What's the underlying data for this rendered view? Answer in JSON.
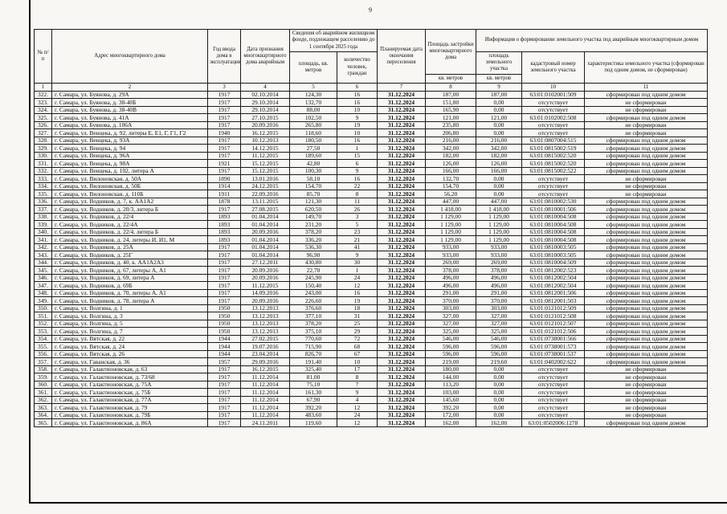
{
  "page": {
    "number": "9"
  },
  "table": {
    "header": {
      "num": "№ п/п",
      "address": "Адрес многоквартирного дома",
      "year": "Год ввода дома в эксплуатацию",
      "date_recognized": "Дата признания многоквартирного дома аварийным",
      "fund_group": "Сведения об аварийном жилищном фонде, подлежащем расселению до 1 сентября 2025 года",
      "fund_area": "площадь, кв. метров",
      "fund_people": "количество человек, граждан",
      "resettle_date": "Планируемая дата окончания переселения",
      "footprint": "Площадь застройки многоквартирного дома",
      "footprint_unit": "кв. метров",
      "land_group": "Информация о формировании земельного участка под аварийным многоквартирным домом",
      "land_area": "площадь земельного участка",
      "land_area_unit": "кв. метров",
      "cadastral": "кадастровый номер земельного участка",
      "characteristic": "характеристика земельного участка (сформирован под одним домом, не сформирован)",
      "numbers": [
        "1",
        "2",
        "3",
        "4",
        "5",
        "6",
        "7",
        "8",
        "9",
        "10",
        "11"
      ]
    },
    "rows": [
      [
        "322.",
        "г. Самара, ул. Буянова, д. 29А",
        "1917",
        "02.10.2014",
        "124,30",
        "16",
        "31.12.2024",
        "187,00",
        "187,00",
        "63:01:0102001:509",
        "сформирован под одним домом"
      ],
      [
        "323.",
        "г. Самара, ул. Буянова, д. 38-40Б",
        "1917",
        "29.10.2014",
        "132,70",
        "16",
        "31.12.2024",
        "151,80",
        "0,00",
        "отсутствует",
        "не сформирован"
      ],
      [
        "324.",
        "г. Самара, ул. Буянова, д. 38-40В",
        "1917",
        "29.10.2014",
        "88,00",
        "10",
        "31.12.2024",
        "165,90",
        "0,00",
        "отсутствует",
        "не сформирован"
      ],
      [
        "325.",
        "г. Самара, ул. Буянова, д. 41А",
        "1917",
        "27.10.2015",
        "102,50",
        "9",
        "31.12.2024",
        "121,00",
        "121,00",
        "63:01:0102002:508",
        "сформирован под одним домом"
      ],
      [
        "326.",
        "г. Самара, ул. Буянова, д. 106А",
        "1917",
        "20.09.2016",
        "265,80",
        "19",
        "31.12.2024",
        "235,80",
        "0,00",
        "отсутствует",
        "не сформирован"
      ],
      [
        "327.",
        "г. Самара, ул. Венцека, д. 92, литеры Е, Е1, Г, Г1, Г2",
        "1940",
        "16.12.2015",
        "118,60",
        "10",
        "31.12.2024",
        "206,80",
        "0,00",
        "отсутствует",
        "не сформирован"
      ],
      [
        "328.",
        "г. Самара, ул. Венцека, д. 93А",
        "1917",
        "10.12.2013",
        "180,50",
        "16",
        "31.12.2024",
        "216,00",
        "216,00",
        "63:01:0807004:515",
        "сформирован под одним домом"
      ],
      [
        "329.",
        "г. Самара, ул. Венцека, д. 94",
        "1917",
        "14.12.2015",
        "27,50",
        "1",
        "31.12.2024",
        "342,00",
        "342,00",
        "63:01:0815002:519",
        "сформирован под одним домом"
      ],
      [
        "330.",
        "г. Самара, ул. Венцека, д. 96А",
        "1917",
        "11.12.2015",
        "189,60",
        "15",
        "31.12.2024",
        "182,00",
        "182,00",
        "63:01:0815002:520",
        "сформирован под одним домом"
      ],
      [
        "331.",
        "г. Самара, ул. Венцека, д. 98А",
        "1921",
        "15.12.2015",
        "42,80",
        "6",
        "31.12.2024",
        "126,00",
        "126,00",
        "63:01:0815002:520",
        "сформирован под одним домом"
      ],
      [
        "332.",
        "г. Самара, ул. Венцека, д. 102, литера А",
        "1917",
        "15.12.2015",
        "100,30",
        "9",
        "31.12.2024",
        "166,00",
        "166,00",
        "63:01:0815002:522",
        "сформирован под одним домом"
      ],
      [
        "333.",
        "г. Самара, ул. Вилоновская, д. 50А",
        "1890",
        "13.01.2016",
        "58,10",
        "16",
        "31.12.2024",
        "132,70",
        "0,00",
        "отсутствует",
        "не сформирован"
      ],
      [
        "334.",
        "г. Самара, ул. Вилоновская, д. 50Б",
        "1914",
        "24.12.2015",
        "154,70",
        "22",
        "31.12.2024",
        "154,70",
        "0,00",
        "отсутствует",
        "не сформирован"
      ],
      [
        "335.",
        "г. Самара, ул. Вилоновская, д. 110Б",
        "1911",
        "22.09.2016",
        "85,70",
        "8",
        "31.12.2024",
        "56,20",
        "0,00",
        "отсутствует",
        "не сформирован"
      ],
      [
        "336.",
        "г. Самара, ул. Водников, д. 7, к. АА1А2",
        "1878",
        "13.11.2015",
        "121,30",
        "11",
        "31.12.2024",
        "447,00",
        "447,00",
        "63:01:0810002:530",
        "сформирован под одним домом"
      ],
      [
        "337.",
        "г. Самара, ул. Водников, д. 20/3, литера Б",
        "1917",
        "27.08.2015",
        "620,50",
        "26",
        "31.12.2024",
        "1 418,00",
        "1 418,00",
        "63:01:0810001:506",
        "сформирован под одним домом"
      ],
      [
        "338.",
        "г. Самара, ул. Водников, д. 22/4",
        "1893",
        "01.04.2014",
        "149,70",
        "3",
        "31.12.2024",
        "1 129,00",
        "1 129,00",
        "63:01:0810004:508",
        "сформирован под одним домом"
      ],
      [
        "339.",
        "г. Самара, ул. Водников, д. 22/4А",
        "1893",
        "01.04.2014",
        "231,20",
        "5",
        "31.12.2024",
        "1 129,00",
        "1 129,00",
        "63:01:0810004:508",
        "сформирован под одним домом"
      ],
      [
        "340.",
        "г. Самара, ул. Водников, д. 22/4, литера Б",
        "1893",
        "20.09.2016",
        "378,20",
        "23",
        "31.12.2024",
        "1 129,00",
        "1 129,00",
        "63:01:0810004:508",
        "сформирован под одним домом"
      ],
      [
        "341.",
        "г. Самара, ул. Водников, д. 24, литеры И, И1, М",
        "1893",
        "01.04.2014",
        "336,20",
        "21",
        "31.12.2024",
        "1 129,00",
        "1 129,00",
        "63:01:0810004:508",
        "сформирован под одним домом"
      ],
      [
        "342.",
        "г. Самара, ул. Водников, д. 25А",
        "1917",
        "01.04.2014",
        "536,30",
        "41",
        "31.12.2024",
        "933,00",
        "933,00",
        "63:01:0810003:505",
        "сформирован под одним домом"
      ],
      [
        "343.",
        "г. Самара, ул. Водников, д. 25Г",
        "1917",
        "01.04.2014",
        "96,90",
        "9",
        "31.12.2024",
        "933,00",
        "933,00",
        "63:01:0810003:505",
        "сформирован под одним домом"
      ],
      [
        "344.",
        "г. Самара, ул. Водников, д. 40, к. АА1А2А3",
        "1917",
        "27.12.2011",
        "430,80",
        "30",
        "31.12.2024",
        "269,00",
        "269,00",
        "63:01:0810004:509",
        "сформирован под одним домом"
      ],
      [
        "345.",
        "г. Самара, ул. Водников, д. 67, литеры А, А1",
        "1917",
        "20.09.2016",
        "22,70",
        "1",
        "31.12.2024",
        "378,00",
        "378,00",
        "63:01:0812002:523",
        "сформирован под одним домом"
      ],
      [
        "346.",
        "г. Самара, ул. Водников, д. 69, литера А",
        "1917",
        "20.09.2016",
        "245,90",
        "24",
        "31.12.2024",
        "496,00",
        "496,00",
        "63:01:0812002:504",
        "сформирован под одним домом"
      ],
      [
        "347.",
        "г. Самара, ул. Водников, д. 69Б",
        "1917",
        "11.12.2015",
        "150,40",
        "12",
        "31.12.2024",
        "496,00",
        "496,00",
        "63:01:0812002:504",
        "сформирован под одним домом"
      ],
      [
        "348.",
        "г. Самара, ул. Водников, д. 70, литеры А, А1",
        "1917",
        "14.09.2016",
        "243,00",
        "16",
        "31.12.2024",
        "291,00",
        "291,00",
        "63:01:0812001:506",
        "сформирован под одним домом"
      ],
      [
        "349.",
        "г. Самара, ул. Водников, д. 78, литера А",
        "1917",
        "20.09.2016",
        "226,60",
        "19",
        "31.12.2024",
        "370,00",
        "370,00",
        "63:01:0812001:503",
        "сформирован под одним домом"
      ],
      [
        "350.",
        "г. Самара, ул. Волгина, д. 1",
        "1950",
        "13.12.2013",
        "376,60",
        "18",
        "31.12.2024",
        "303,00",
        "303,00",
        "63:01:0121012:509",
        "сформирован под одним домом"
      ],
      [
        "351.",
        "г. Самара, ул. Волгина, д. 3",
        "1950",
        "13.12.2013",
        "377,10",
        "31",
        "31.12.2024",
        "327,00",
        "327,00",
        "63:01:0121012:508",
        "сформирован под одним домом"
      ],
      [
        "352.",
        "г. Самара, ул. Волгина, д. 5",
        "1950",
        "13.12.2013",
        "378,20",
        "25",
        "31.12.2024",
        "327,00",
        "327,00",
        "63:01:0121012:507",
        "сформирован под одним домом"
      ],
      [
        "353.",
        "г. Самара, ул. Волгина, д. 7",
        "1950",
        "13.12.2013",
        "375,10",
        "29",
        "31.12.2024",
        "325,00",
        "325,00",
        "63:01:0121012:506",
        "сформирован под одним домом"
      ],
      [
        "354.",
        "г. Самара, ул. Вятская, д. 22",
        "1944",
        "27.02.2015",
        "770,60",
        "72",
        "31.12.2024",
        "546,00",
        "546,00",
        "63:01:0738001:566",
        "сформирован под одним домом"
      ],
      [
        "355.",
        "г. Самара, ул. Вятская, д. 24",
        "1944",
        "19.07.2016",
        "715,90",
        "68",
        "31.12.2024",
        "596,00",
        "596,00",
        "63:01:0738001:573",
        "сформирован под одним домом"
      ],
      [
        "356.",
        "г. Самара, ул. Вятская, д. 26",
        "1944",
        "23.04.2014",
        "826,70",
        "67",
        "31.12.2024",
        "596,00",
        "596,00",
        "63:01:0738001:537",
        "сформирован под одним домом"
      ],
      [
        "357.",
        "г. Самара, ул. Гаванская, д. 36",
        "1957",
        "29.09.2016",
        "191,40",
        "10",
        "31.12.2024",
        "219,00",
        "219,60",
        "63:01:0402002:622",
        "сформирован под одним домом"
      ],
      [
        "358.",
        "г. Самара, ул. Галактионовская, д. 63",
        "1917",
        "16.12.2015",
        "325,40",
        "17",
        "31.12.2024",
        "180,00",
        "0,00",
        "отсутствует",
        "не сформирован"
      ],
      [
        "359.",
        "г. Самара, ул. Галактионовская, д. 73/68",
        "1917",
        "11.12.2014",
        "81,00",
        "8",
        "31.12.2024",
        "144,00",
        "0,00",
        "отсутствует",
        "не сформирован"
      ],
      [
        "360.",
        "г. Самара, ул. Галактионовская, д. 75А",
        "1917",
        "11.12.2014",
        "75,10",
        "7",
        "31.12.2024",
        "113,20",
        "0,00",
        "отсутствует",
        "не сформирован"
      ],
      [
        "361.",
        "г. Самара, ул. Галактионовская, д. 75Б",
        "1917",
        "11.12.2014",
        "161,30",
        "9",
        "31.12.2024",
        "103,00",
        "0,00",
        "отсутствует",
        "не сформирован"
      ],
      [
        "362.",
        "г. Самара, ул. Галактионовская, д. 77А",
        "1917",
        "11.12.2014",
        "67,90",
        "4",
        "31.12.2024",
        "145,60",
        "0,00",
        "отсутствует",
        "не сформирован"
      ],
      [
        "363.",
        "г. Самара, ул. Галактионовская, д. 79",
        "1917",
        "11.12.2014",
        "392,20",
        "12",
        "31.12.2024",
        "392,20",
        "0,00",
        "отсутствует",
        "не сформирован"
      ],
      [
        "364.",
        "г. Самара, ул. Галактионовская, д. 79Б",
        "1917",
        "11.12.2014",
        "483,60",
        "24",
        "31.12.2024",
        "172,00",
        "0,00",
        "отсутствует",
        "не сформирован"
      ],
      [
        "365.",
        "г. Самара, ул. Галактионовская, д. 86А",
        "1917",
        "24.11.2011",
        "119,60",
        "12",
        "31.12.2024",
        "162,00",
        "162,00",
        "63:01:0502006:1278",
        "сформирован под одним домом"
      ]
    ]
  }
}
